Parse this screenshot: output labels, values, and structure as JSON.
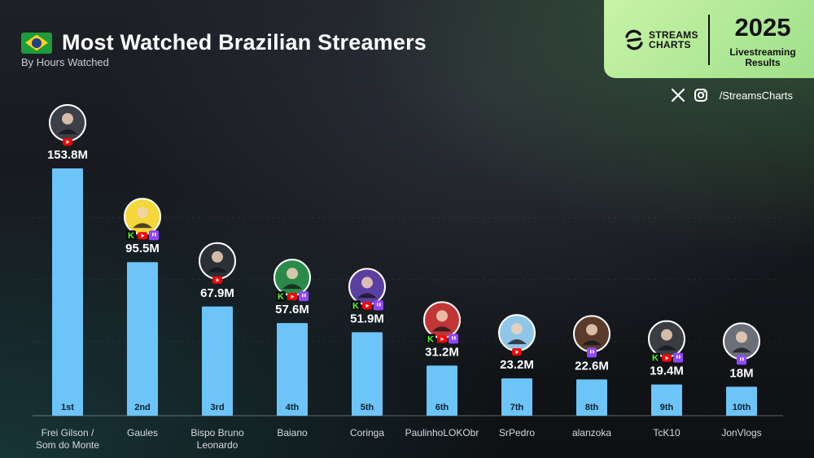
{
  "header": {
    "title": "Most Watched Brazilian Streamers",
    "subtitle": "By Hours Watched"
  },
  "brand": {
    "logo_line1": "STREAMS",
    "logo_line2": "CHARTS",
    "year": "2025",
    "results_line1": "Livestreaming",
    "results_line2": "Results",
    "handle": "/StreamsCharts"
  },
  "colors": {
    "bar": "#6cc4f8",
    "kick": "#53fc18",
    "youtube": "#ff0000",
    "twitch": "#9146ff",
    "brand_green": "#b6ec98"
  },
  "chart_data": {
    "type": "bar",
    "title": "Most Watched Brazilian Streamers",
    "subtitle": "By Hours Watched",
    "ylabel": "",
    "xlabel": "",
    "grid": true,
    "categories": [
      "Frei Gilson / Som do Monte",
      "Gaules",
      "Bispo Bruno Leonardo",
      "Baiano",
      "Coringa",
      "PaulinhoLOKObr",
      "SrPedro",
      "alanzoka",
      "TcK10",
      "JonVlogs"
    ],
    "values": [
      153.8,
      95.5,
      67.9,
      57.6,
      51.9,
      31.2,
      23.2,
      22.6,
      19.4,
      18
    ],
    "value_labels": [
      "153.8M",
      "95.5M",
      "67.9M",
      "57.6M",
      "51.9M",
      "31.2M",
      "23.2M",
      "22.6M",
      "19.4M",
      "18M"
    ],
    "ranks": [
      "1st",
      "2nd",
      "3rd",
      "4th",
      "5th",
      "6th",
      "7th",
      "8th",
      "9th",
      "10th"
    ],
    "platforms": [
      [
        "youtube"
      ],
      [
        "kick",
        "youtube",
        "twitch"
      ],
      [
        "youtube"
      ],
      [
        "kick",
        "youtube",
        "twitch"
      ],
      [
        "kick",
        "youtube",
        "twitch"
      ],
      [
        "kick",
        "youtube",
        "twitch"
      ],
      [
        "youtube"
      ],
      [
        "twitch"
      ],
      [
        "kick",
        "youtube",
        "twitch"
      ],
      [
        "twitch"
      ]
    ],
    "avatar_colors": [
      "#3a3f48",
      "#f4d73a",
      "#2b2f36",
      "#2a8a4a",
      "#5b3fa0",
      "#c03535",
      "#8ec7e8",
      "#5a3a2a",
      "#3b3d42",
      "#6a6f78"
    ]
  }
}
